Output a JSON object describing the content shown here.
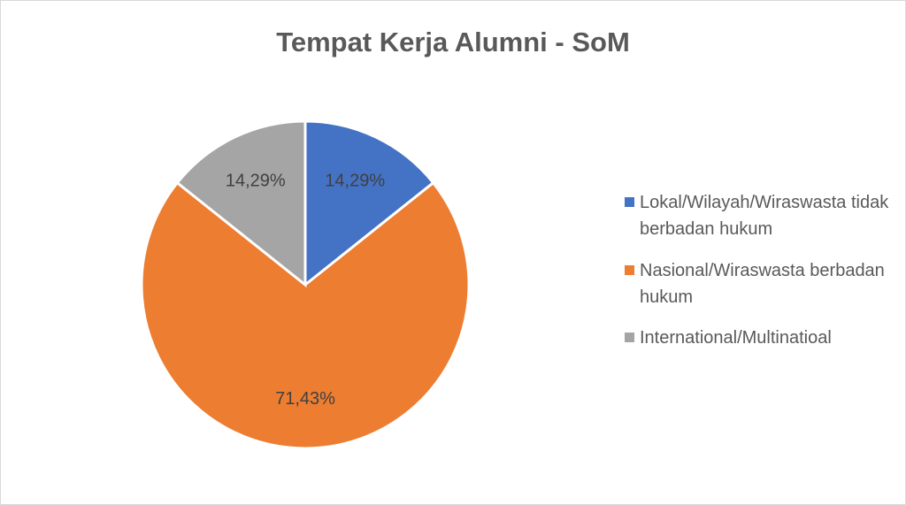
{
  "chart_data": {
    "type": "pie",
    "title": "Tempat Kerja Alumni - SoM",
    "categories": [
      "Lokal/Wilayah/Wiraswasta tidak berbadan hukum",
      "Nasional/Wiraswasta berbadan hukum",
      "International/Multinatioal"
    ],
    "values": [
      14.29,
      71.43,
      14.29
    ],
    "value_labels": [
      "14,29%",
      "71,43%",
      "14,29%"
    ],
    "colors": [
      "#4472c4",
      "#ed7d31",
      "#a5a5a5"
    ],
    "legend": "right"
  }
}
